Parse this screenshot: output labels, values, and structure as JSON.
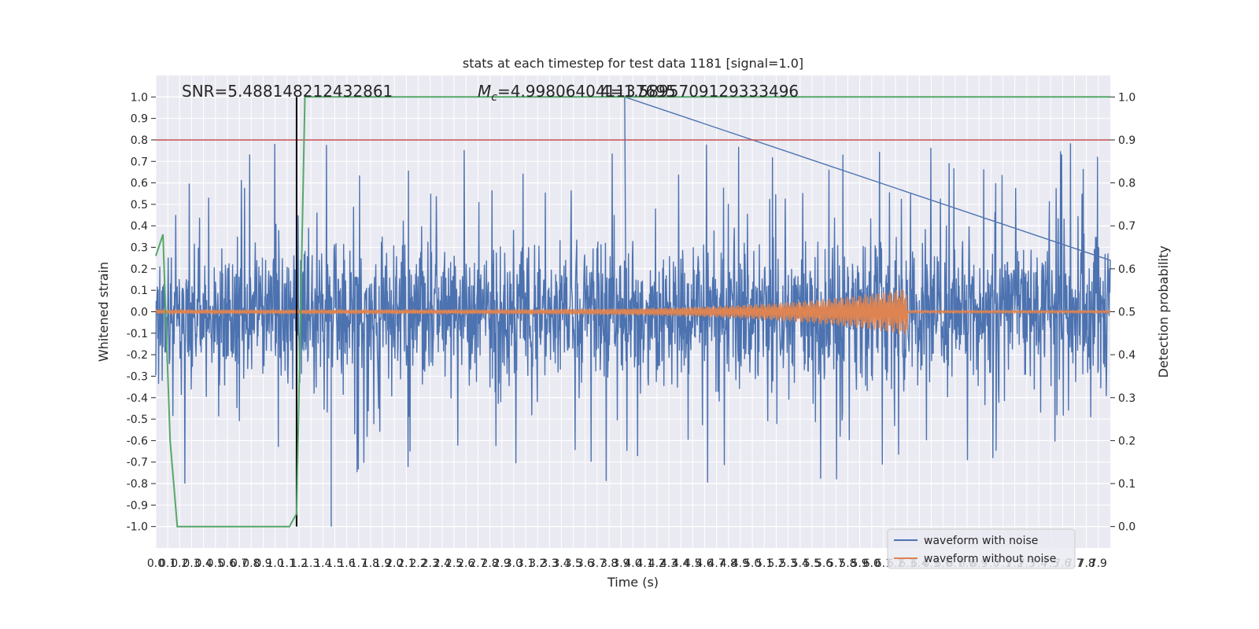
{
  "chart_data": {
    "type": "line",
    "title": "stats at each timestep for test data 1181 [signal=1.0]",
    "xlabel": "Time (s)",
    "ylabel": "Whitened strain",
    "y2label": "Detection probability",
    "xlim": [
      0.0,
      8.0
    ],
    "ylim": [
      -1.1,
      1.1
    ],
    "y2lim": [
      -0.05,
      1.05
    ],
    "x_ticks": [
      "0.0",
      "0.1",
      "0.2",
      "0.3",
      "0.4",
      "0.5",
      "0.6",
      "0.7",
      "0.8",
      "0.9",
      "1.0",
      "1.1",
      "1.2",
      "1.3",
      "1.4",
      "1.5",
      "1.6",
      "1.7",
      "1.8",
      "1.9",
      "2.0",
      "2.1",
      "2.2",
      "2.3",
      "2.4",
      "2.5",
      "2.6",
      "2.7",
      "2.8",
      "2.9",
      "3.0",
      "3.1",
      "3.2",
      "3.3",
      "3.4",
      "3.5",
      "3.6",
      "3.7",
      "3.8",
      "3.9",
      "4.0",
      "4.1",
      "4.2",
      "4.3",
      "4.4",
      "4.5",
      "4.6",
      "4.7",
      "4.8",
      "4.9",
      "5.0",
      "5.1",
      "5.2",
      "5.3",
      "5.4",
      "5.5",
      "5.6",
      "5.7",
      "5.8",
      "5.9",
      "6.0",
      "6.1",
      "6.2",
      "6.3",
      "6.4",
      "6.5",
      "6.6",
      "6.7",
      "6.8",
      "6.9",
      "7.0",
      "7.1",
      "7.2",
      "7.3",
      "7.4",
      "7.5",
      "7.6",
      "7.7",
      "7.8",
      "7.9"
    ],
    "y_ticks": [
      "1.0",
      "0.9",
      "0.8",
      "0.7",
      "0.6",
      "0.5",
      "0.4",
      "0.3",
      "0.2",
      "0.1",
      "0.0",
      "-0.1",
      "-0.2",
      "-0.3",
      "-0.4",
      "-0.5",
      "-0.6",
      "-0.7",
      "-0.8",
      "-0.9",
      "-1.0"
    ],
    "y2_ticks": [
      "1.0",
      "0.9",
      "0.8",
      "0.7",
      "0.6",
      "0.5",
      "0.4",
      "0.3",
      "0.2",
      "0.1",
      "0.0"
    ],
    "annotations": {
      "snr": "SNR=5.488148212432861",
      "mc_prefix": "M",
      "mc_sub": "c",
      "mc_value": "=4.998064041137695",
      "overlap": "4=1.5895709129333496"
    },
    "legend": {
      "position": "lower-right",
      "entries": [
        "waveform with noise",
        "waveform without noise"
      ]
    },
    "series": [
      {
        "name": "waveform with noise",
        "axis": "left",
        "color": "#4c72b0",
        "envelope_typical": 0.3,
        "peak_max": 1.0,
        "peak_min": -1.0
      },
      {
        "name": "waveform without noise",
        "axis": "left",
        "color": "#dd8452",
        "amplitude_start": 0.01,
        "amplitude_peak": 0.11,
        "merger_time": 6.3,
        "amplitude_after": 0.005
      },
      {
        "name": "detection probability",
        "axis": "right",
        "color": "#55a868",
        "x": [
          0.0,
          0.06,
          0.12,
          0.18,
          0.25,
          0.5,
          1.0,
          1.12,
          1.18,
          1.25,
          8.0
        ],
        "y": [
          0.63,
          0.68,
          0.2,
          0.0,
          0.0,
          0.0,
          0.0,
          0.0,
          0.03,
          1.0,
          1.0
        ]
      },
      {
        "name": "threshold",
        "axis": "right",
        "color": "#c44e52",
        "value": 0.9
      },
      {
        "name": "marker",
        "axis": "left",
        "color": "#000000",
        "x": 1.18,
        "y_range": [
          -1.0,
          1.0
        ]
      }
    ]
  }
}
